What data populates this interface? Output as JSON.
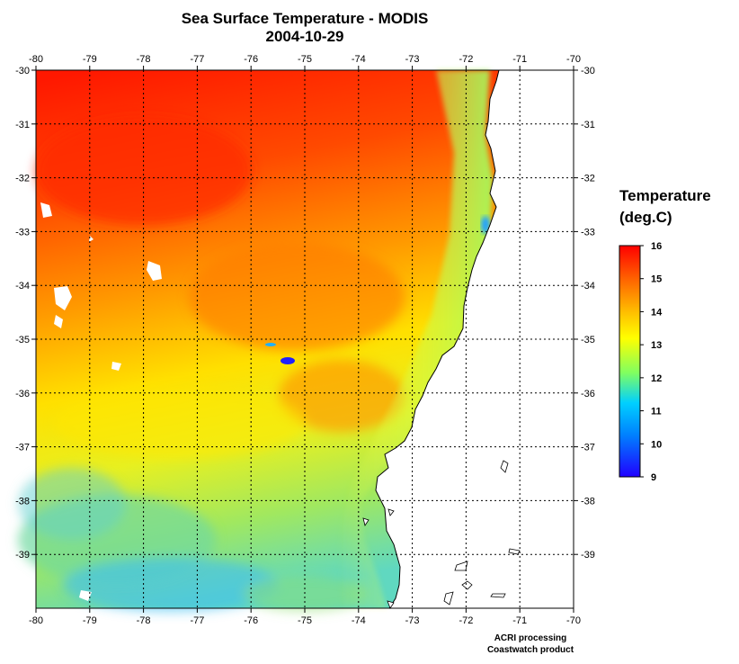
{
  "title": "Sea Surface Temperature - MODIS",
  "date": "2004-10-29",
  "legend": {
    "title_line1": "Temperature",
    "title_line2": "(deg.C)",
    "ticks": [
      "16",
      "15",
      "14",
      "13",
      "12",
      "11",
      "10",
      "9"
    ],
    "min": 9,
    "max": 16
  },
  "axes": {
    "lon_labels": [
      "-80",
      "-79",
      "-78",
      "-77",
      "-76",
      "-75",
      "-74",
      "-73",
      "-72",
      "-71",
      "-70"
    ],
    "lat_labels": [
      "-30",
      "-31",
      "-32",
      "-33",
      "-34",
      "-35",
      "-36",
      "-37",
      "-38",
      "-39"
    ],
    "lon_range": [
      -80,
      -70
    ],
    "lat_range": [
      -30,
      -40
    ],
    "grid": true,
    "grid_style": "dotted"
  },
  "credit_line1": "ACRI processing",
  "credit_line2": "Coastwatch product",
  "colors": {
    "land": "#ffffff",
    "coast": "#000000",
    "scale": [
      "#ff0000",
      "#ff8000",
      "#ffff00",
      "#00c0ff",
      "#0000ff"
    ]
  }
}
